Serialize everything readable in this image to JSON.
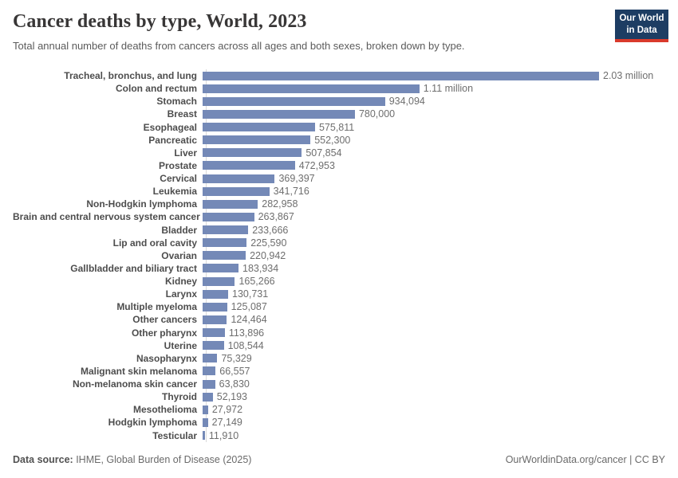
{
  "header": {
    "title": "Cancer deaths by type, World, 2023",
    "subtitle": "Total annual number of deaths from cancers across all ages and both sexes, broken down by type."
  },
  "logo": {
    "line1": "Our World",
    "line2": "in Data",
    "bg_color": "#1d3d63",
    "accent_color": "#d93a2b"
  },
  "chart_data": {
    "type": "bar",
    "orientation": "horizontal",
    "title": "Cancer deaths by type, World, 2023",
    "xlabel": "",
    "ylabel": "",
    "xlim": [
      0,
      2030000
    ],
    "grid": false,
    "bar_color": "#7489b7",
    "categories": [
      "Tracheal, bronchus, and lung",
      "Colon and rectum",
      "Stomach",
      "Breast",
      "Esophageal",
      "Pancreatic",
      "Liver",
      "Prostate",
      "Cervical",
      "Leukemia",
      "Non-Hodgkin lymphoma",
      "Brain and central nervous system cancer",
      "Bladder",
      "Lip and oral cavity",
      "Ovarian",
      "Gallbladder and biliary tract",
      "Kidney",
      "Larynx",
      "Multiple myeloma",
      "Other cancers",
      "Other pharynx",
      "Uterine",
      "Nasopharynx",
      "Malignant skin melanoma",
      "Non-melanoma skin cancer",
      "Thyroid",
      "Mesothelioma",
      "Hodgkin lymphoma",
      "Testicular"
    ],
    "values": [
      2030000,
      1110000,
      934094,
      780000,
      575811,
      552300,
      507854,
      472953,
      369397,
      341716,
      282958,
      263867,
      233666,
      225590,
      220942,
      183934,
      165266,
      130731,
      125087,
      124464,
      113896,
      108544,
      75329,
      66557,
      63830,
      52193,
      27972,
      27149,
      11910
    ],
    "value_labels": [
      "2.03 million",
      "1.11 million",
      "934,094",
      "780,000",
      "575,811",
      "552,300",
      "507,854",
      "472,953",
      "369,397",
      "341,716",
      "282,958",
      "263,867",
      "233,666",
      "225,590",
      "220,942",
      "183,934",
      "165,266",
      "130,731",
      "125,087",
      "124,464",
      "113,896",
      "108,544",
      "75,329",
      "66,557",
      "63,830",
      "52,193",
      "27,972",
      "27,149",
      "11,910"
    ]
  },
  "footer": {
    "source_label": "Data source:",
    "source_text": " IHME, Global Burden of Disease (2025)",
    "credit": "OurWorldinData.org/cancer | CC BY"
  }
}
